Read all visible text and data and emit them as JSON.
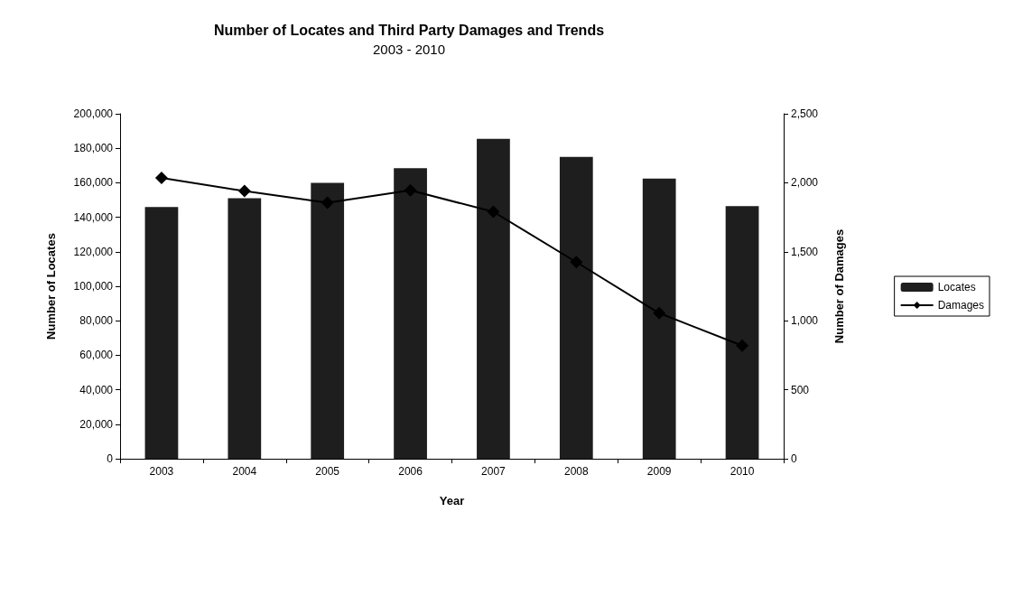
{
  "chart_data": {
    "type": "bar",
    "title": "Number of Locates and Third Party Damages and Trends",
    "subtitle": "2003 - 2010",
    "xlabel": "Year",
    "ylabel": "Number of Locates",
    "y2label": "Number of Damages",
    "categories": [
      "2003",
      "2004",
      "2005",
      "2006",
      "2007",
      "2008",
      "2009",
      "2010"
    ],
    "series": [
      {
        "name": "Locates",
        "color": "#1e1e1e",
        "values": [
          146000,
          151000,
          160000,
          168500,
          185500,
          175000,
          162500,
          146500
        ]
      },
      {
        "name": "Damages",
        "type": "line",
        "axis": "y2",
        "color": "#000000",
        "marker": "diamond",
        "values": [
          2035,
          1940,
          1855,
          1945,
          1790,
          1425,
          1055,
          820
        ]
      }
    ],
    "ylim": [
      0,
      200000
    ],
    "yticks": [
      0,
      {
        "value": 20000,
        "label": "20,000"
      },
      {
        "value": 40000,
        "label": "40,000"
      },
      {
        "value": 60000,
        "label": "60,000"
      },
      {
        "value": 80000,
        "label": "80,000"
      },
      {
        "value": 100000,
        "label": "100,000"
      },
      {
        "value": 120000,
        "label": "120,000"
      },
      {
        "value": 140000,
        "label": "140,000"
      },
      {
        "value": 160000,
        "label": "160,000"
      },
      {
        "value": 180000,
        "label": "180,000"
      },
      {
        "value": 200000,
        "label": "200,000"
      }
    ],
    "y2lim": [
      0,
      2500
    ],
    "y2ticks": [
      0,
      500,
      {
        "value": 1000,
        "label": "1,000"
      },
      {
        "value": 1500,
        "label": "1,500"
      },
      {
        "value": 2000,
        "label": "2,000"
      },
      {
        "value": 2500,
        "label": "2,500"
      }
    ],
    "grid": false,
    "legend": "right"
  }
}
